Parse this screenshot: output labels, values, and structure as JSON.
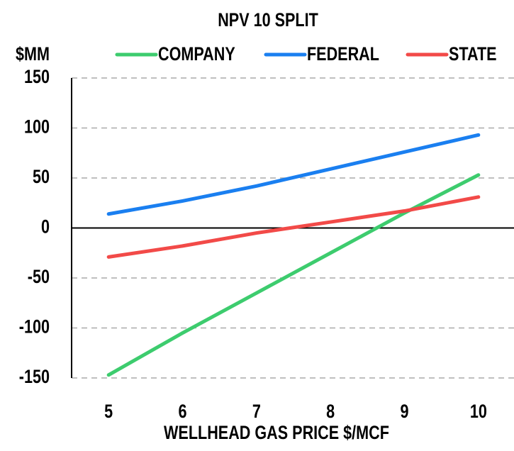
{
  "chart_data": {
    "type": "line",
    "title": "NPV 10 SPLIT",
    "y_label": "$MM",
    "x_label": "WELLHEAD GAS PRICE $/MCF",
    "x": [
      5,
      6,
      7,
      8,
      9,
      10
    ],
    "series": [
      {
        "name": "COMPANY",
        "color": "#3dcc6e",
        "values": [
          -147,
          -105,
          -65,
          -25,
          15,
          53
        ]
      },
      {
        "name": "FEDERAL",
        "color": "#1a7ff0",
        "values": [
          14,
          27,
          42,
          59,
          76,
          93
        ]
      },
      {
        "name": "STATE",
        "color": "#f24a48",
        "values": [
          -29,
          -18,
          -5,
          6,
          17,
          31
        ]
      }
    ],
    "xlim": [
      4.5,
      10.5
    ],
    "xticks": [
      5,
      6,
      7,
      8,
      9,
      10
    ],
    "ylim": [
      -150,
      150
    ],
    "yticks": [
      -150,
      -100,
      -50,
      0,
      50,
      100,
      150
    ],
    "grid": true,
    "legend": "top"
  }
}
